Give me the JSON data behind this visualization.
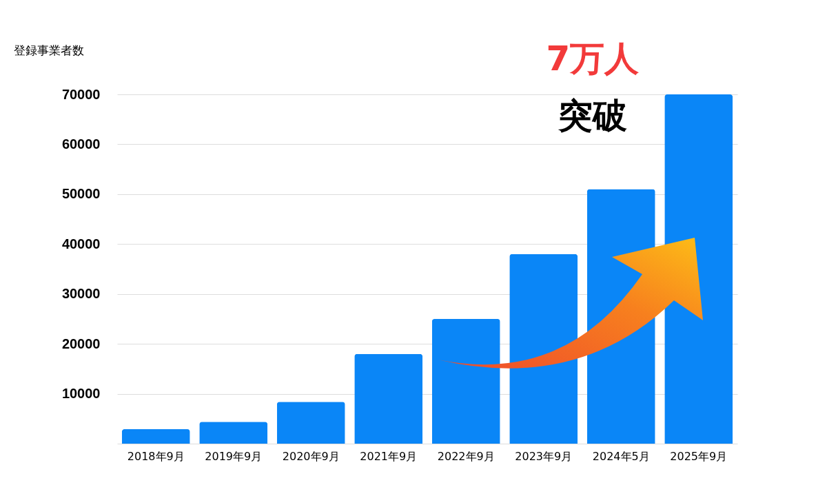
{
  "chart_data": {
    "type": "bar",
    "ylabel": "登録事業者数",
    "categories": [
      "2018年9月",
      "2019年9月",
      "2020年9月",
      "2021年9月",
      "2022年9月",
      "2023年9月",
      "2024年5月",
      "2025年9月"
    ],
    "values": [
      2900,
      4400,
      8400,
      18000,
      25000,
      38000,
      51000,
      70000
    ],
    "color": "#0a86f7",
    "ylim": [
      0,
      70000
    ],
    "yticks": [
      10000,
      20000,
      30000,
      40000,
      50000,
      60000,
      70000
    ],
    "grid": "y",
    "annotations": [
      "7万人",
      "突破"
    ]
  }
}
